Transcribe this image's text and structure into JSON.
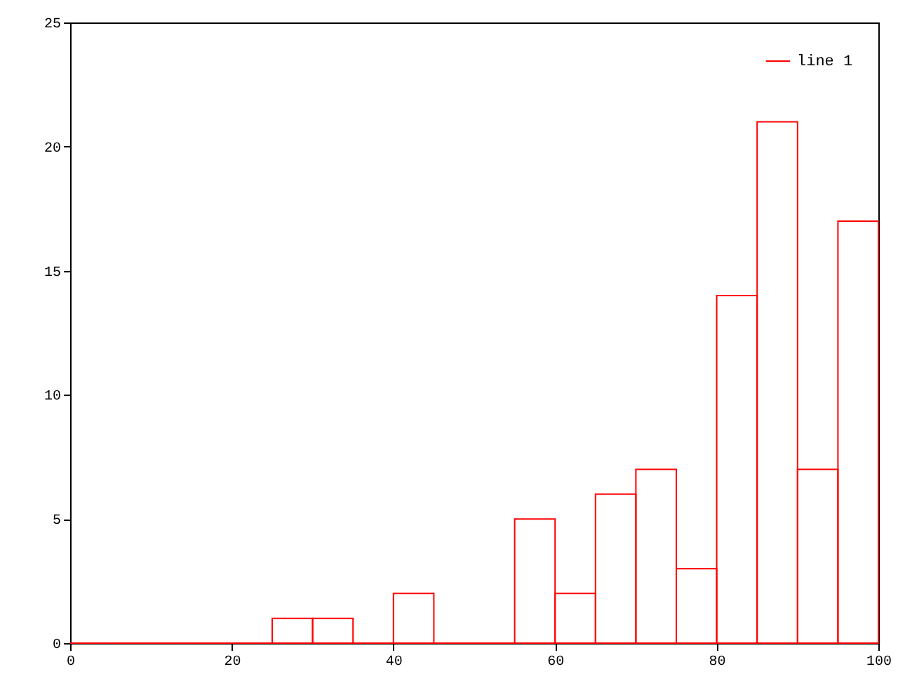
{
  "chart_data": {
    "type": "histogram",
    "bins": [
      0,
      5,
      10,
      15,
      20,
      25,
      30,
      35,
      40,
      45,
      50,
      55,
      60,
      65,
      70,
      75,
      80,
      85,
      90,
      95,
      100
    ],
    "series": [
      {
        "name": "line 1",
        "color": "#ff0000",
        "values": [
          0,
          0,
          0,
          0,
          0,
          1,
          1,
          0,
          2,
          0,
          0,
          5,
          2,
          6,
          7,
          3,
          14,
          21,
          7,
          17
        ]
      }
    ],
    "xlim": [
      0,
      100
    ],
    "xticks": [
      0,
      20,
      40,
      60,
      80,
      100
    ],
    "ylim": [
      0,
      25
    ],
    "yticks": [
      0,
      5,
      10,
      15,
      20,
      25
    ],
    "grid": false,
    "legend": "top right"
  }
}
